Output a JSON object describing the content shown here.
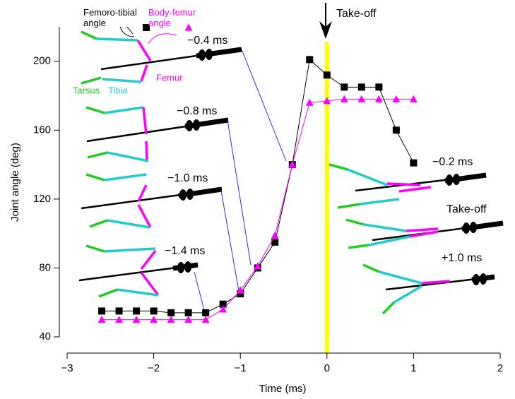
{
  "chart_data": {
    "type": "line",
    "x_label": "Time (ms)",
    "y_label": "Joint angle (deg)",
    "x": [
      -2.6,
      -2.4,
      -2.2,
      -2.0,
      -1.8,
      -1.6,
      -1.4,
      -1.2,
      -1.0,
      -0.8,
      -0.6,
      -0.4,
      -0.2,
      0,
      0.2,
      0.4,
      0.6,
      0.8,
      1.0
    ],
    "series": [
      {
        "name": "Femoro-tibial angle",
        "color": "#000000",
        "marker": "square",
        "values": [
          55,
          55,
          55,
          55,
          54,
          54,
          54,
          59,
          65,
          80,
          95,
          140,
          201,
          192,
          185,
          185,
          185,
          160,
          141
        ]
      },
      {
        "name": "Body-femur angle",
        "color": "#ff00ff",
        "marker": "triangle",
        "values": [
          50,
          50,
          50,
          50,
          50,
          50,
          50,
          56,
          67,
          81,
          99,
          140,
          176,
          177,
          178,
          178,
          178,
          178,
          178
        ]
      }
    ],
    "xlim": [
      -3,
      2
    ],
    "xticks": [
      {
        "value": -3,
        "label": "−3"
      },
      {
        "value": -2,
        "label": "−2"
      },
      {
        "value": -1,
        "label": "−1"
      },
      0,
      1,
      2
    ],
    "ylim": [
      40,
      220
    ],
    "yticks": [
      40,
      80,
      120,
      160,
      200
    ],
    "takeoff_line": {
      "x": 0,
      "color": "#ffff00",
      "label": "Take-off"
    },
    "annotations": [
      "Tarsus",
      "Tibia",
      "Femur",
      "−0.4 ms",
      "−0.8 ms",
      "−1.0 ms",
      "−1.4 ms",
      "−0.2 ms",
      "Take-off",
      "+1.0 ms"
    ]
  }
}
